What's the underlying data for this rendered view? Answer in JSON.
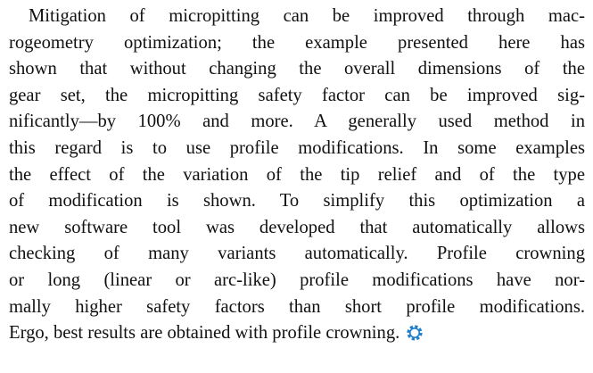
{
  "paragraph": {
    "lines": [
      "Mitigation of micropitting can be improved through mac-",
      "rogeometry optimization; the example presented here has",
      "shown that without changing the overall dimensions of the",
      "gear set, the micropitting safety factor can be improved sig-",
      "nificantly—by 100% and more. A generally used method in",
      "this regard is to use profile modifications. In some examples",
      "the effect of the variation of the tip relief and of the type",
      "of modification is shown. To simplify this optimization a",
      "new software tool was developed that automatically allows",
      "checking of many variants automatically. Profile crowning",
      "or long (linear or arc-like) profile modifications have nor-",
      "mally higher safety factors than short profile modifications.",
      "Ergo, best results are obtained with profile crowning."
    ]
  }
}
